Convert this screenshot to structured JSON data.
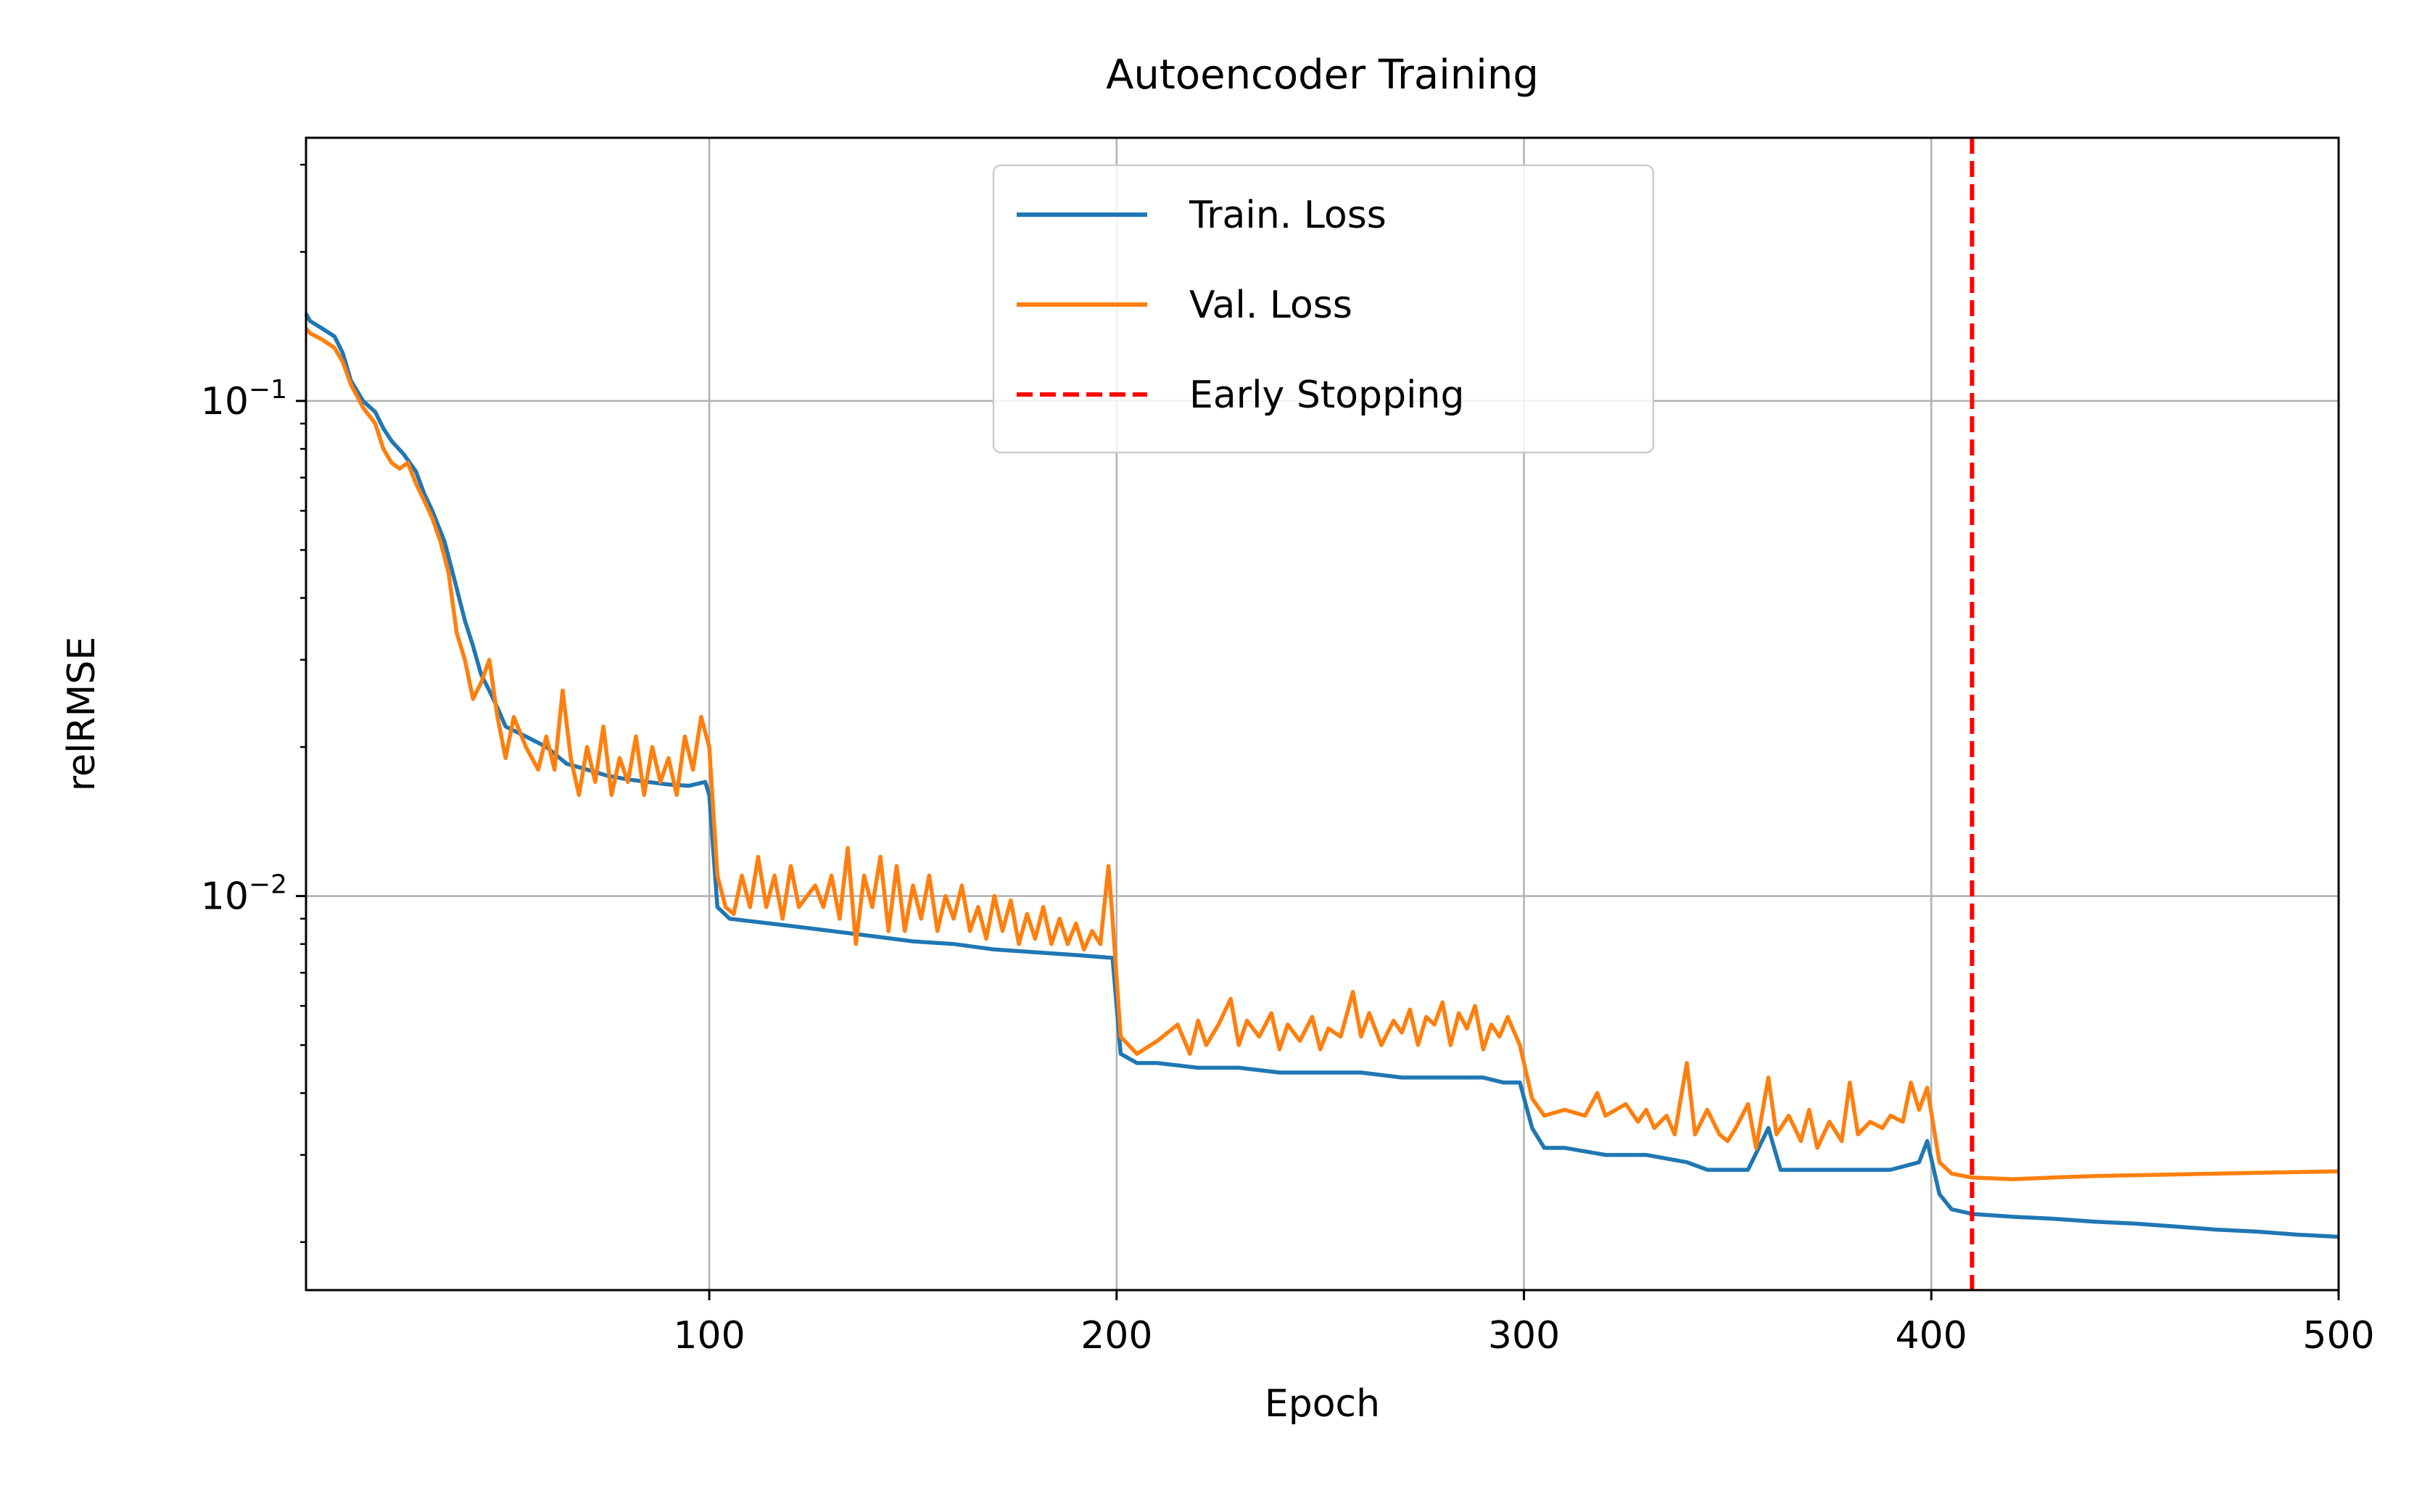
{
  "chart_data": {
    "type": "line",
    "title": "Autoencoder Training",
    "xlabel": "Epoch",
    "ylabel": "relRMSE",
    "xlim": [
      1,
      500
    ],
    "ylim": [
      0.0016,
      0.34
    ],
    "yscale": "log",
    "grid": true,
    "legend_position": "top-center",
    "x_ticks": [
      {
        "value": 100,
        "label": "100"
      },
      {
        "value": 200,
        "label": "200"
      },
      {
        "value": 300,
        "label": "300"
      },
      {
        "value": 400,
        "label": "400"
      },
      {
        "value": 500,
        "label": "500"
      }
    ],
    "y_ticks": [
      {
        "value": 0.1,
        "base": "10",
        "exp": "−1"
      },
      {
        "value": 0.01,
        "base": "10",
        "exp": "−2"
      }
    ],
    "series": [
      {
        "name": "Train. Loss",
        "color": "#1f77b4",
        "style": "solid",
        "points": [
          [
            1,
            0.15
          ],
          [
            2,
            0.145
          ],
          [
            5,
            0.14
          ],
          [
            8,
            0.135
          ],
          [
            10,
            0.125
          ],
          [
            12,
            0.11
          ],
          [
            15,
            0.1
          ],
          [
            18,
            0.095
          ],
          [
            20,
            0.088
          ],
          [
            22,
            0.083
          ],
          [
            25,
            0.078
          ],
          [
            28,
            0.072
          ],
          [
            30,
            0.065
          ],
          [
            32,
            0.06
          ],
          [
            35,
            0.052
          ],
          [
            37,
            0.045
          ],
          [
            40,
            0.036
          ],
          [
            42,
            0.032
          ],
          [
            44,
            0.028
          ],
          [
            46,
            0.026
          ],
          [
            48,
            0.024
          ],
          [
            50,
            0.022
          ],
          [
            55,
            0.021
          ],
          [
            60,
            0.02
          ],
          [
            65,
            0.0185
          ],
          [
            70,
            0.018
          ],
          [
            75,
            0.0175
          ],
          [
            80,
            0.0172
          ],
          [
            85,
            0.017
          ],
          [
            90,
            0.0168
          ],
          [
            95,
            0.0167
          ],
          [
            99,
            0.017
          ],
          [
            100,
            0.016
          ],
          [
            102,
            0.0095
          ],
          [
            105,
            0.009
          ],
          [
            110,
            0.0089
          ],
          [
            120,
            0.0087
          ],
          [
            130,
            0.0085
          ],
          [
            140,
            0.0083
          ],
          [
            150,
            0.0081
          ],
          [
            160,
            0.008
          ],
          [
            170,
            0.0078
          ],
          [
            180,
            0.0077
          ],
          [
            190,
            0.0076
          ],
          [
            199,
            0.0075
          ],
          [
            201,
            0.0048
          ],
          [
            205,
            0.0046
          ],
          [
            210,
            0.0046
          ],
          [
            220,
            0.0045
          ],
          [
            230,
            0.0045
          ],
          [
            240,
            0.0044
          ],
          [
            250,
            0.0044
          ],
          [
            260,
            0.0044
          ],
          [
            270,
            0.0043
          ],
          [
            280,
            0.0043
          ],
          [
            290,
            0.0043
          ],
          [
            295,
            0.0042
          ],
          [
            299,
            0.0042
          ],
          [
            302,
            0.0034
          ],
          [
            305,
            0.0031
          ],
          [
            310,
            0.0031
          ],
          [
            320,
            0.003
          ],
          [
            330,
            0.003
          ],
          [
            340,
            0.0029
          ],
          [
            345,
            0.0028
          ],
          [
            350,
            0.0028
          ],
          [
            355,
            0.0028
          ],
          [
            360,
            0.0034
          ],
          [
            363,
            0.0028
          ],
          [
            370,
            0.0028
          ],
          [
            380,
            0.0028
          ],
          [
            390,
            0.0028
          ],
          [
            397,
            0.0029
          ],
          [
            399,
            0.0032
          ],
          [
            402,
            0.0025
          ],
          [
            405,
            0.00233
          ],
          [
            410,
            0.00228
          ],
          [
            420,
            0.00225
          ],
          [
            430,
            0.00223
          ],
          [
            440,
            0.0022
          ],
          [
            450,
            0.00218
          ],
          [
            460,
            0.00215
          ],
          [
            470,
            0.00212
          ],
          [
            480,
            0.0021
          ],
          [
            490,
            0.00207
          ],
          [
            500,
            0.00205
          ]
        ]
      },
      {
        "name": "Val. Loss",
        "color": "#ff7f0e",
        "style": "solid",
        "points": [
          [
            1,
            0.14
          ],
          [
            2,
            0.137
          ],
          [
            5,
            0.133
          ],
          [
            8,
            0.128
          ],
          [
            10,
            0.12
          ],
          [
            12,
            0.108
          ],
          [
            15,
            0.097
          ],
          [
            18,
            0.09
          ],
          [
            20,
            0.08
          ],
          [
            22,
            0.075
          ],
          [
            24,
            0.073
          ],
          [
            26,
            0.075
          ],
          [
            28,
            0.068
          ],
          [
            30,
            0.063
          ],
          [
            32,
            0.058
          ],
          [
            34,
            0.052
          ],
          [
            36,
            0.045
          ],
          [
            38,
            0.034
          ],
          [
            40,
            0.03
          ],
          [
            42,
            0.025
          ],
          [
            44,
            0.027
          ],
          [
            46,
            0.03
          ],
          [
            48,
            0.023
          ],
          [
            50,
            0.019
          ],
          [
            52,
            0.023
          ],
          [
            55,
            0.02
          ],
          [
            58,
            0.018
          ],
          [
            60,
            0.021
          ],
          [
            62,
            0.018
          ],
          [
            64,
            0.026
          ],
          [
            66,
            0.019
          ],
          [
            68,
            0.016
          ],
          [
            70,
            0.02
          ],
          [
            72,
            0.017
          ],
          [
            74,
            0.022
          ],
          [
            76,
            0.016
          ],
          [
            78,
            0.019
          ],
          [
            80,
            0.017
          ],
          [
            82,
            0.021
          ],
          [
            84,
            0.016
          ],
          [
            86,
            0.02
          ],
          [
            88,
            0.017
          ],
          [
            90,
            0.019
          ],
          [
            92,
            0.016
          ],
          [
            94,
            0.021
          ],
          [
            96,
            0.018
          ],
          [
            98,
            0.023
          ],
          [
            100,
            0.02
          ],
          [
            102,
            0.011
          ],
          [
            104,
            0.0095
          ],
          [
            106,
            0.0092
          ],
          [
            108,
            0.011
          ],
          [
            110,
            0.0095
          ],
          [
            112,
            0.012
          ],
          [
            114,
            0.0095
          ],
          [
            116,
            0.011
          ],
          [
            118,
            0.009
          ],
          [
            120,
            0.0115
          ],
          [
            122,
            0.0095
          ],
          [
            124,
            0.01
          ],
          [
            126,
            0.0105
          ],
          [
            128,
            0.0095
          ],
          [
            130,
            0.011
          ],
          [
            132,
            0.009
          ],
          [
            134,
            0.0125
          ],
          [
            136,
            0.008
          ],
          [
            138,
            0.011
          ],
          [
            140,
            0.0095
          ],
          [
            142,
            0.012
          ],
          [
            144,
            0.0085
          ],
          [
            146,
            0.0115
          ],
          [
            148,
            0.0085
          ],
          [
            150,
            0.0105
          ],
          [
            152,
            0.009
          ],
          [
            154,
            0.011
          ],
          [
            156,
            0.0085
          ],
          [
            158,
            0.01
          ],
          [
            160,
            0.009
          ],
          [
            162,
            0.0105
          ],
          [
            164,
            0.0085
          ],
          [
            166,
            0.0095
          ],
          [
            168,
            0.0082
          ],
          [
            170,
            0.01
          ],
          [
            172,
            0.0085
          ],
          [
            174,
            0.0098
          ],
          [
            176,
            0.008
          ],
          [
            178,
            0.0092
          ],
          [
            180,
            0.0082
          ],
          [
            182,
            0.0095
          ],
          [
            184,
            0.008
          ],
          [
            186,
            0.009
          ],
          [
            188,
            0.008
          ],
          [
            190,
            0.0088
          ],
          [
            192,
            0.0078
          ],
          [
            194,
            0.0085
          ],
          [
            196,
            0.008
          ],
          [
            198,
            0.0115
          ],
          [
            199,
            0.009
          ],
          [
            201,
            0.0052
          ],
          [
            205,
            0.0048
          ],
          [
            210,
            0.0051
          ],
          [
            215,
            0.0055
          ],
          [
            218,
            0.0048
          ],
          [
            220,
            0.0056
          ],
          [
            222,
            0.005
          ],
          [
            225,
            0.0055
          ],
          [
            228,
            0.0062
          ],
          [
            230,
            0.005
          ],
          [
            232,
            0.0056
          ],
          [
            235,
            0.0052
          ],
          [
            238,
            0.0058
          ],
          [
            240,
            0.0049
          ],
          [
            242,
            0.0055
          ],
          [
            245,
            0.0051
          ],
          [
            248,
            0.0057
          ],
          [
            250,
            0.0049
          ],
          [
            252,
            0.0054
          ],
          [
            255,
            0.0052
          ],
          [
            258,
            0.0064
          ],
          [
            260,
            0.0052
          ],
          [
            262,
            0.0058
          ],
          [
            265,
            0.005
          ],
          [
            268,
            0.0056
          ],
          [
            270,
            0.0053
          ],
          [
            272,
            0.0059
          ],
          [
            274,
            0.005
          ],
          [
            276,
            0.0057
          ],
          [
            278,
            0.0055
          ],
          [
            280,
            0.0061
          ],
          [
            282,
            0.005
          ],
          [
            284,
            0.0058
          ],
          [
            286,
            0.0054
          ],
          [
            288,
            0.006
          ],
          [
            290,
            0.0049
          ],
          [
            292,
            0.0055
          ],
          [
            294,
            0.0052
          ],
          [
            296,
            0.0057
          ],
          [
            299,
            0.005
          ],
          [
            302,
            0.0039
          ],
          [
            305,
            0.0036
          ],
          [
            310,
            0.0037
          ],
          [
            315,
            0.0036
          ],
          [
            318,
            0.004
          ],
          [
            320,
            0.0036
          ],
          [
            325,
            0.0038
          ],
          [
            328,
            0.0035
          ],
          [
            330,
            0.0037
          ],
          [
            332,
            0.0034
          ],
          [
            335,
            0.0036
          ],
          [
            337,
            0.0033
          ],
          [
            340,
            0.0046
          ],
          [
            342,
            0.0033
          ],
          [
            345,
            0.0037
          ],
          [
            348,
            0.0033
          ],
          [
            350,
            0.0032
          ],
          [
            352,
            0.0034
          ],
          [
            355,
            0.0038
          ],
          [
            357,
            0.0031
          ],
          [
            360,
            0.0043
          ],
          [
            362,
            0.0033
          ],
          [
            365,
            0.0036
          ],
          [
            368,
            0.0032
          ],
          [
            370,
            0.0037
          ],
          [
            372,
            0.0031
          ],
          [
            375,
            0.0035
          ],
          [
            378,
            0.0032
          ],
          [
            380,
            0.0042
          ],
          [
            382,
            0.0033
          ],
          [
            385,
            0.0035
          ],
          [
            388,
            0.0034
          ],
          [
            390,
            0.0036
          ],
          [
            393,
            0.0035
          ],
          [
            395,
            0.0042
          ],
          [
            397,
            0.0037
          ],
          [
            399,
            0.0041
          ],
          [
            402,
            0.0029
          ],
          [
            405,
            0.00275
          ],
          [
            410,
            0.0027
          ],
          [
            420,
            0.00268
          ],
          [
            430,
            0.0027
          ],
          [
            440,
            0.00272
          ],
          [
            450,
            0.00273
          ],
          [
            460,
            0.00274
          ],
          [
            470,
            0.00275
          ],
          [
            480,
            0.00276
          ],
          [
            490,
            0.00277
          ],
          [
            500,
            0.00278
          ]
        ]
      },
      {
        "name": "Early Stopping",
        "color": "#ff0000",
        "style": "dashed",
        "vline_x": 410
      }
    ]
  }
}
